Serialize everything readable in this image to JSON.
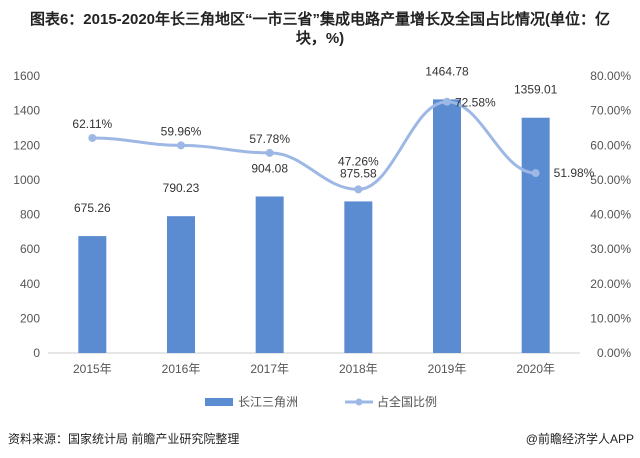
{
  "chart_data": {
    "type": "bar+line",
    "title": "图表6：2015-2020年长三角地区“一市三省”集成电路产量增长及全国占比情况(单位：亿块，%)",
    "categories": [
      "2015年",
      "2016年",
      "2017年",
      "2018年",
      "2019年",
      "2020年"
    ],
    "series": [
      {
        "name": "长江三角洲",
        "type": "bar",
        "axis": "left",
        "color": "#5b8bd0",
        "values": [
          675.26,
          790.23,
          904.08,
          875.58,
          1464.78,
          1359.01
        ],
        "labels": [
          "675.26",
          "790.23",
          "904.08",
          "875.58",
          "1464.78",
          "1359.01"
        ]
      },
      {
        "name": "占全国比例",
        "type": "line",
        "axis": "right",
        "color": "#9db8e4",
        "values": [
          62.11,
          59.96,
          57.78,
          47.26,
          72.58,
          51.98
        ],
        "labels": [
          "62.11%",
          "59.96%",
          "57.78%",
          "47.26%",
          "72.58%",
          "51.98%"
        ]
      }
    ],
    "ylim": [
      0,
      1600
    ],
    "yticks": [
      "0",
      "200",
      "400",
      "600",
      "800",
      "1000",
      "1200",
      "1400",
      "1600"
    ],
    "y2lim": [
      0,
      80
    ],
    "y2ticks": [
      "0.00%",
      "10.00%",
      "20.00%",
      "30.00%",
      "40.00%",
      "50.00%",
      "60.00%",
      "70.00%",
      "80.00%"
    ],
    "legend": "bottom"
  },
  "source": "资料来源：国家统计局 前瞻产业研究院整理",
  "brand": "@前瞻经济学人APP"
}
